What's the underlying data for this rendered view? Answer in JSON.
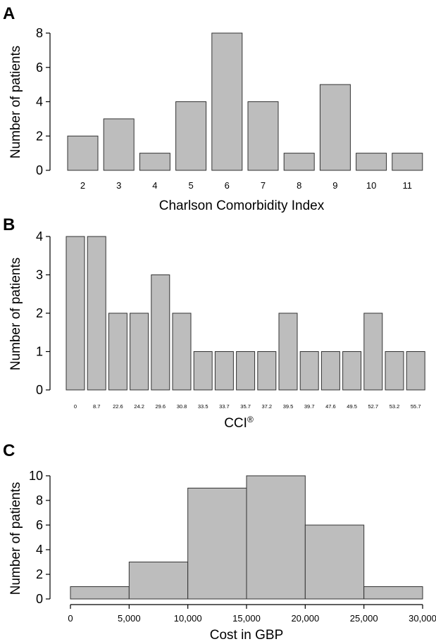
{
  "chart_data": [
    {
      "panel": "A",
      "type": "bar",
      "categories": [
        "2",
        "3",
        "4",
        "5",
        "6",
        "7",
        "8",
        "9",
        "10",
        "11"
      ],
      "values": [
        2,
        3,
        1,
        4,
        8,
        4,
        1,
        5,
        1,
        1
      ],
      "xlabel": "Charlson Comorbidity Index",
      "ylabel": "Number of patients",
      "ylim": [
        0,
        8
      ],
      "yticks": [
        "0",
        "2",
        "4",
        "6",
        "8"
      ],
      "bar_color": "#bdbdbd"
    },
    {
      "panel": "B",
      "type": "bar",
      "categories": [
        "0",
        "8.7",
        "22.6",
        "24.2",
        "29.6",
        "30.8",
        "33.5",
        "33.7",
        "35.7",
        "37.2",
        "39.5",
        "39.7",
        "47.6",
        "49.5",
        "52.7",
        "53.2",
        "55.7"
      ],
      "values": [
        4,
        4,
        2,
        2,
        3,
        2,
        1,
        1,
        1,
        1,
        2,
        1,
        1,
        1,
        2,
        1,
        1
      ],
      "xlabel": "CCI®",
      "ylabel": "Number of patients",
      "ylim": [
        0,
        4
      ],
      "yticks": [
        "0",
        "1",
        "2",
        "3",
        "4"
      ],
      "bar_color": "#bdbdbd"
    },
    {
      "panel": "C",
      "type": "bar",
      "bins": [
        [
          0,
          5000
        ],
        [
          5000,
          10000
        ],
        [
          10000,
          15000
        ],
        [
          15000,
          20000
        ],
        [
          20000,
          25000
        ],
        [
          25000,
          30000
        ]
      ],
      "values": [
        1,
        3,
        9,
        10,
        6,
        1
      ],
      "xticks": [
        "0",
        "5,000",
        "10,000",
        "15,000",
        "20,000",
        "25,000",
        "30,000"
      ],
      "xlabel": "Cost in GBP",
      "ylabel": "Number of patients",
      "ylim": [
        0,
        10
      ],
      "yticks": [
        "0",
        "2",
        "4",
        "6",
        "8",
        "10"
      ],
      "bar_color": "#bdbdbd"
    }
  ]
}
